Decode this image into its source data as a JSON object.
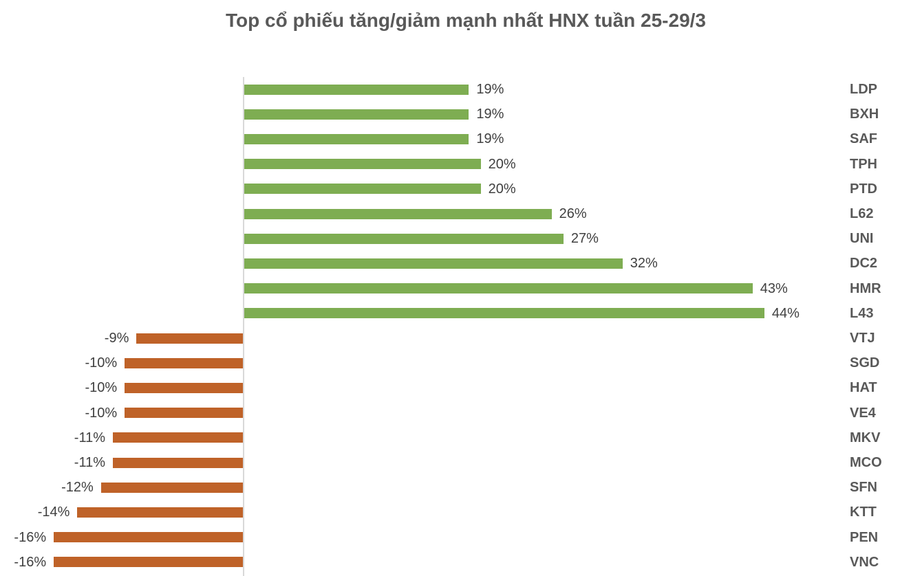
{
  "chart_data": {
    "type": "bar",
    "orientation": "horizontal",
    "title": "Top cổ phiếu tăng/giảm mạnh nhất HNX tuần 25-29/3",
    "categories": [
      "LDP",
      "BXH",
      "SAF",
      "TPH",
      "PTD",
      "L62",
      "UNI",
      "DC2",
      "HMR",
      "L43",
      "VTJ",
      "SGD",
      "HAT",
      "VE4",
      "MKV",
      "MCO",
      "SFN",
      "KTT",
      "PEN",
      "VNC"
    ],
    "values": [
      19,
      19,
      19,
      20,
      20,
      26,
      27,
      32,
      43,
      44,
      -9,
      -10,
      -10,
      -10,
      -11,
      -11,
      -12,
      -14,
      -16,
      -16
    ],
    "value_labels": [
      "19%",
      "19%",
      "19%",
      "20%",
      "20%",
      "26%",
      "27%",
      "32%",
      "43%",
      "44%",
      "-9%",
      "-10%",
      "-10%",
      "-10%",
      "-11%",
      "-11%",
      "-12%",
      "-14%",
      "-16%",
      "-16%"
    ],
    "xlim": [
      -16,
      44
    ],
    "grid": false,
    "legend": false,
    "category_labels_position": "right",
    "colors": {
      "positive_bar": "#7EAD52",
      "negative_bar": "#BF6228",
      "axis_line": "#D9D9D9",
      "title_text": "#595959",
      "value_text": "#404040",
      "category_text": "#595959",
      "background": "#FFFFFF"
    }
  }
}
